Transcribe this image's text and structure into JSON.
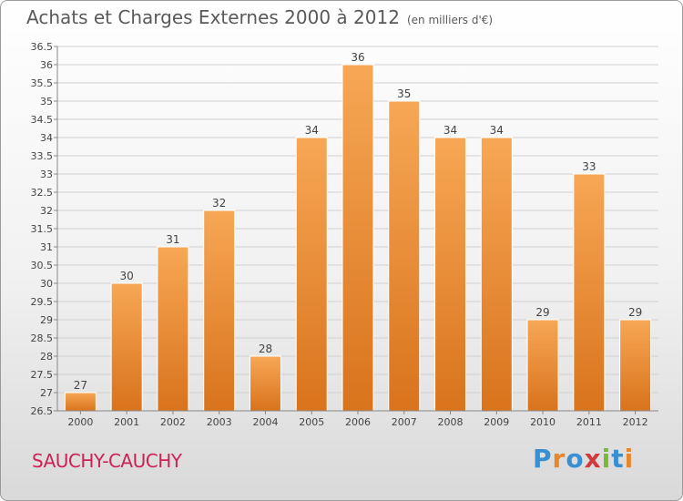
{
  "title": "Achats et Charges Externes 2000 à 2012",
  "unit_label": "(en milliers d'€)",
  "city": "SAUCHY-CAUCHY",
  "logo": {
    "letters": [
      "P",
      "r",
      "o",
      "x",
      "i",
      "t",
      "i"
    ],
    "colors": [
      "#3a8fd1",
      "#e8862a",
      "#3a8fd1",
      "#d23b3b",
      "#7bb834",
      "#3a8fd1",
      "#e8862a"
    ]
  },
  "colors": {
    "bar_light": "#f7a755",
    "bar_dark": "#d9731c",
    "accent": "#cc2255"
  },
  "chart_data": {
    "type": "bar",
    "categories": [
      "2000",
      "2001",
      "2002",
      "2003",
      "2004",
      "2005",
      "2006",
      "2007",
      "2008",
      "2009",
      "2010",
      "2011",
      "2012"
    ],
    "values": [
      27,
      30,
      31,
      32,
      28,
      34,
      36,
      35,
      34,
      34,
      29,
      33,
      29
    ],
    "ylim": [
      26.5,
      36.5
    ],
    "yticks": [
      "26.5",
      "27",
      "27.5",
      "28",
      "28.5",
      "29",
      "29.5",
      "30",
      "30.5",
      "31",
      "31.5",
      "32",
      "32.5",
      "33",
      "33.5",
      "34",
      "34.5",
      "35",
      "35.5",
      "36",
      "36.5"
    ],
    "grid": "horizontal",
    "xlabel": "",
    "ylabel": ""
  }
}
